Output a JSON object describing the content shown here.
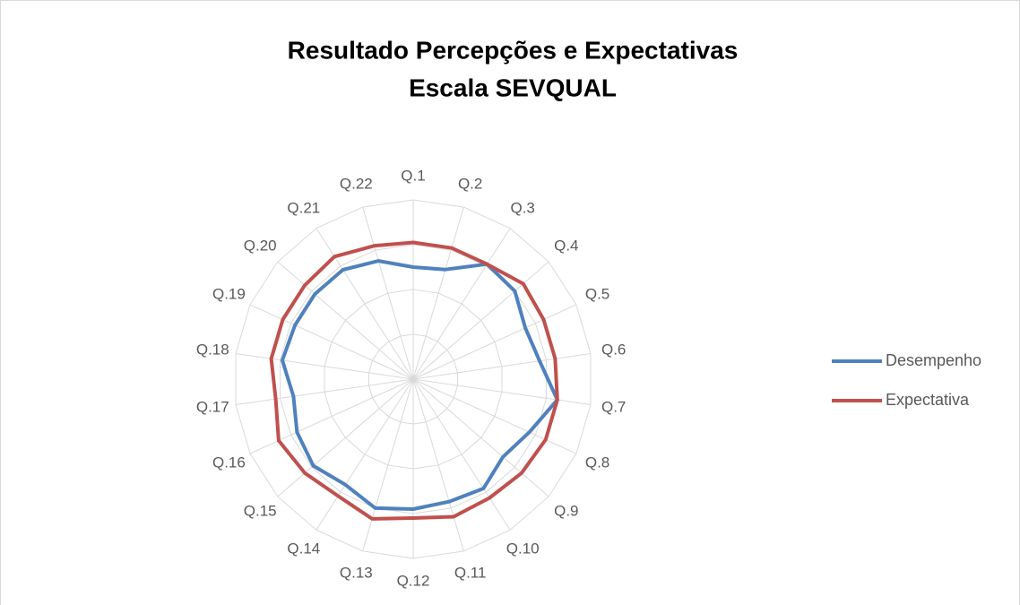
{
  "chart_data": {
    "type": "radar",
    "title_lines": [
      "Resultado Percepções e Expectativas",
      "Escala SEVQUAL"
    ],
    "categories": [
      "Q.1",
      "Q.2",
      "Q.3",
      "Q.4",
      "Q.5",
      "Q.6",
      "Q.7",
      "Q.8",
      "Q.9",
      "Q.10",
      "Q.11",
      "Q.12",
      "Q.13",
      "Q.14",
      "Q.15",
      "Q.16",
      "Q.17",
      "Q.18",
      "Q.19",
      "Q.20",
      "Q.21",
      "Q.22"
    ],
    "series": [
      {
        "name": "Desempenho",
        "color": "#4f81bd",
        "values": [
          2.5,
          2.55,
          3.05,
          3.0,
          2.75,
          2.85,
          3.25,
          2.85,
          2.65,
          2.9,
          2.85,
          2.9,
          3.0,
          2.8,
          2.95,
          2.85,
          2.7,
          2.95,
          2.9,
          2.9,
          2.9,
          2.75
        ]
      },
      {
        "name": "Expectativa",
        "color": "#c0504d",
        "values": [
          3.05,
          3.05,
          3.05,
          3.25,
          3.2,
          3.2,
          3.25,
          3.25,
          3.2,
          3.15,
          3.2,
          3.1,
          3.25,
          3.1,
          3.2,
          3.3,
          3.1,
          3.2,
          3.2,
          3.2,
          3.25,
          3.1
        ]
      }
    ],
    "ylim": [
      0,
      4
    ],
    "yticks": [
      0,
      1,
      2,
      3,
      4
    ],
    "grid": true,
    "legend": "right"
  }
}
